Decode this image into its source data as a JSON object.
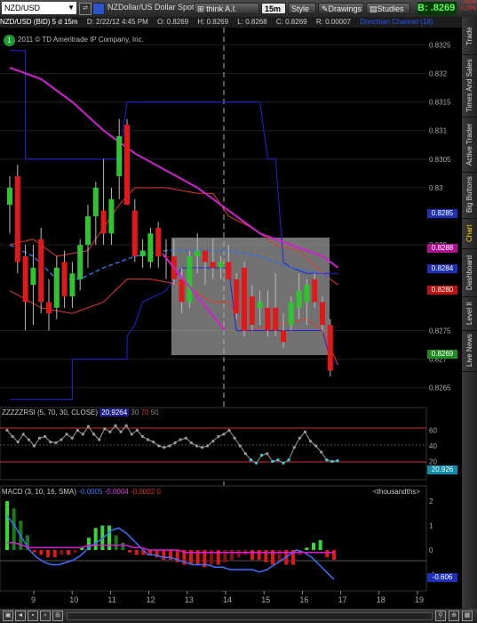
{
  "toolbar": {
    "symbol": "NZD/USD",
    "description": "NZDollar/US Dollar Spot",
    "share_label": "think A.I.",
    "timeframe": "15m",
    "style_label": "Style",
    "drawings_label": "Drawings",
    "studies_label": "Studies",
    "bid_label": "B:",
    "bid_value": ".8269",
    "change_line1": "-.0024",
    "change_line2": "-0.29%"
  },
  "infobar": {
    "symbol": "NZD/USD (BID) 5 d 15m",
    "date": "D: 2/22/12 4:45 PM",
    "open": "O: 0.8269",
    "high": "H: 0.8269",
    "low": "L: 0.8268",
    "close": "C: 0.8269",
    "range": "R: 0.00007",
    "indicator": "Donchian Channel (18)"
  },
  "copyright": "2011 © TD Ameritrade IP Company, Inc.",
  "price_axis": [
    "0.8325",
    "0.832",
    "0.8315",
    "0.831",
    "0.8305",
    "0.83",
    "0.829",
    "0.8275",
    "0.827",
    "0.8265"
  ],
  "price_badges": [
    {
      "label": "0.8285",
      "color": "#1d2fb5"
    },
    {
      "label": "0.8288",
      "color": "#b01090"
    },
    {
      "label": "0.8284",
      "color": "#1d2fb5"
    },
    {
      "label": "0.8280",
      "color": "#c01010"
    },
    {
      "label": "0.8269",
      "color": "#1e8c1e"
    }
  ],
  "rsi": {
    "title": "ZZZZZRSI (5, 70, 30, CLOSE)",
    "value": "20.9264",
    "level1": "30",
    "level2": "70",
    "level3": "50",
    "axis": [
      "60",
      "40",
      "20"
    ],
    "badge": "20.926"
  },
  "macd": {
    "title": "MACD (3, 10, 16, SMA)",
    "v1": "-0.0005",
    "v2": "-0.0004",
    "v3": "-0.0002",
    "v4": "0",
    "units": "<thousandths>",
    "axis": [
      "2",
      "1",
      "0",
      "-1"
    ],
    "badge": "-0.606"
  },
  "time_axis": [
    "9",
    "10",
    "11",
    "12",
    "13",
    "14",
    "15",
    "16",
    "17",
    "18",
    "19"
  ],
  "right_tabs": [
    "Trade",
    "Times And Sales",
    "Active Trader",
    "Big Buttons",
    "Chart",
    "Dashboard",
    "Level II",
    "Live News"
  ],
  "active_tab": "Chart",
  "colors": {
    "up": "#2fc42f",
    "down": "#e01818",
    "donchian": "#2323d8",
    "ma": "#d21fd2",
    "envelope": "#e03a2a",
    "dash": "#2f6fe0",
    "rsi_line": "#999999",
    "rsi_low": "#2ad4e8",
    "box": "#cfcfcf"
  },
  "chart_data": [
    {
      "type": "candlestick",
      "title": "NZD/USD (BID) 5 d 15m",
      "ylim": [
        0.8262,
        0.8328
      ],
      "x_ticks": [
        "9",
        "10",
        "11",
        "12",
        "13",
        "14",
        "15",
        "16",
        "17",
        "18",
        "19"
      ],
      "candles": [
        {
          "o": 0.83,
          "h": 0.8302,
          "l": 0.8292,
          "c": 0.8297,
          "up": true
        },
        {
          "o": 0.8302,
          "h": 0.8304,
          "l": 0.8285,
          "c": 0.8287,
          "up": false
        },
        {
          "o": 0.8288,
          "h": 0.829,
          "l": 0.8275,
          "c": 0.828,
          "up": false
        },
        {
          "o": 0.8283,
          "h": 0.829,
          "l": 0.8276,
          "c": 0.8286,
          "up": true
        },
        {
          "o": 0.8291,
          "h": 0.8293,
          "l": 0.8278,
          "c": 0.828,
          "up": false
        },
        {
          "o": 0.828,
          "h": 0.8284,
          "l": 0.8275,
          "c": 0.8278,
          "up": false
        },
        {
          "o": 0.8279,
          "h": 0.8288,
          "l": 0.8277,
          "c": 0.8286,
          "up": true
        },
        {
          "o": 0.8287,
          "h": 0.8289,
          "l": 0.8279,
          "c": 0.8281,
          "up": false
        },
        {
          "o": 0.8281,
          "h": 0.8287,
          "l": 0.8279,
          "c": 0.8285,
          "up": true
        },
        {
          "o": 0.8284,
          "h": 0.8291,
          "l": 0.8282,
          "c": 0.829,
          "up": true
        },
        {
          "o": 0.829,
          "h": 0.8297,
          "l": 0.8286,
          "c": 0.8295,
          "up": true
        },
        {
          "o": 0.8295,
          "h": 0.8301,
          "l": 0.829,
          "c": 0.83,
          "up": true
        },
        {
          "o": 0.8296,
          "h": 0.8305,
          "l": 0.829,
          "c": 0.8292,
          "up": false
        },
        {
          "o": 0.8292,
          "h": 0.83,
          "l": 0.829,
          "c": 0.8298,
          "up": true
        },
        {
          "o": 0.8302,
          "h": 0.8312,
          "l": 0.8298,
          "c": 0.8309,
          "up": true
        },
        {
          "o": 0.8311,
          "h": 0.8312,
          "l": 0.8297,
          "c": 0.8297,
          "up": false
        },
        {
          "o": 0.8296,
          "h": 0.8298,
          "l": 0.8287,
          "c": 0.8288,
          "up": false
        },
        {
          "o": 0.8288,
          "h": 0.8291,
          "l": 0.8286,
          "c": 0.8289,
          "up": true
        },
        {
          "o": 0.8287,
          "h": 0.8293,
          "l": 0.8286,
          "c": 0.8292,
          "up": true
        },
        {
          "o": 0.8293,
          "h": 0.8294,
          "l": 0.8286,
          "c": 0.8288,
          "up": false
        },
        {
          "o": 0.8288,
          "h": 0.8291,
          "l": 0.8284,
          "c": 0.8288,
          "up": false
        },
        {
          "o": 0.8288,
          "h": 0.8291,
          "l": 0.8283,
          "c": 0.8284,
          "up": false
        },
        {
          "o": 0.8284,
          "h": 0.8286,
          "l": 0.8278,
          "c": 0.828,
          "up": false
        },
        {
          "o": 0.828,
          "h": 0.8289,
          "l": 0.8279,
          "c": 0.8288,
          "up": true
        },
        {
          "o": 0.8288,
          "h": 0.8292,
          "l": 0.8285,
          "c": 0.8289,
          "up": true
        },
        {
          "o": 0.8289,
          "h": 0.8289,
          "l": 0.8283,
          "c": 0.8287,
          "up": false
        },
        {
          "o": 0.8287,
          "h": 0.8291,
          "l": 0.8284,
          "c": 0.8286,
          "up": false
        },
        {
          "o": 0.8286,
          "h": 0.8288,
          "l": 0.8284,
          "c": 0.8287,
          "up": true
        },
        {
          "o": 0.8287,
          "h": 0.829,
          "l": 0.8284,
          "c": 0.8284,
          "up": false
        },
        {
          "o": 0.8284,
          "h": 0.8285,
          "l": 0.8277,
          "c": 0.8278,
          "up": false
        },
        {
          "o": 0.8286,
          "h": 0.8287,
          "l": 0.8274,
          "c": 0.8275,
          "up": false
        },
        {
          "o": 0.8281,
          "h": 0.8283,
          "l": 0.8275,
          "c": 0.8276,
          "up": false
        },
        {
          "o": 0.8279,
          "h": 0.8282,
          "l": 0.8276,
          "c": 0.828,
          "up": true
        },
        {
          "o": 0.8279,
          "h": 0.8282,
          "l": 0.8274,
          "c": 0.8275,
          "up": false
        },
        {
          "o": 0.8279,
          "h": 0.8285,
          "l": 0.8274,
          "c": 0.8275,
          "up": false
        },
        {
          "o": 0.8275,
          "h": 0.8278,
          "l": 0.8272,
          "c": 0.8273,
          "up": false
        },
        {
          "o": 0.8276,
          "h": 0.8281,
          "l": 0.8275,
          "c": 0.828,
          "up": true
        },
        {
          "o": 0.8279,
          "h": 0.8285,
          "l": 0.8277,
          "c": 0.8282,
          "up": true
        },
        {
          "o": 0.8283,
          "h": 0.8284,
          "l": 0.8276,
          "c": 0.828,
          "up": true
        },
        {
          "o": 0.8284,
          "h": 0.8285,
          "l": 0.8279,
          "c": 0.828,
          "up": false
        },
        {
          "o": 0.828,
          "h": 0.8281,
          "l": 0.8275,
          "c": 0.8276,
          "up": false
        },
        {
          "o": 0.8276,
          "h": 0.8277,
          "l": 0.8267,
          "c": 0.8268,
          "up": false
        }
      ]
    },
    {
      "type": "line",
      "title": "ZZZZZRSI (5, 70, 30, CLOSE)",
      "ylim": [
        0,
        80
      ],
      "levels": [
        70,
        30
      ],
      "values": [
        60,
        52,
        45,
        55,
        48,
        40,
        50,
        52,
        45,
        44,
        48,
        55,
        50,
        60,
        55,
        65,
        55,
        48,
        62,
        58,
        66,
        58,
        66,
        55,
        60,
        52,
        48,
        45,
        40,
        38,
        40,
        44,
        48,
        50,
        44,
        40,
        38,
        40,
        46,
        52,
        55,
        60,
        50,
        40,
        30,
        22,
        18,
        28,
        30,
        20,
        22,
        18,
        22,
        38,
        50,
        58,
        46,
        40,
        32,
        22,
        20,
        21
      ]
    },
    {
      "type": "bar",
      "title": "MACD (3, 10, 16, SMA)",
      "ylim": [
        -1.6,
        2.4
      ],
      "histogram": [
        2.0,
        1.7,
        1.2,
        0.6,
        -0.1,
        -0.2,
        -0.3,
        -0.3,
        -0.2,
        -0.2,
        -0.1,
        0.1,
        0.5,
        0.9,
        1.0,
        1.0,
        0.6,
        0.3,
        -0.1,
        -0.2,
        -0.2,
        -0.2,
        -0.3,
        -0.4,
        -0.4,
        -0.5,
        -0.6,
        -0.6,
        -0.6,
        -0.7,
        -0.6,
        -0.6,
        -0.5,
        -0.4,
        -0.3,
        -0.2,
        -0.4,
        -0.4,
        -0.5,
        -0.6,
        -0.5,
        -0.6,
        -0.6,
        -0.2,
        0.1,
        0.3,
        0.4,
        -0.3,
        -0.4
      ],
      "macd_line": [
        1.4,
        1.0,
        0.5,
        0.0,
        -0.3,
        -0.5,
        -0.6,
        -0.6,
        -0.5,
        -0.4,
        -0.2,
        0.1,
        0.3,
        0.5,
        0.8,
        0.9,
        0.7,
        0.4,
        0.1,
        -0.2,
        -0.2,
        -0.3,
        -0.3,
        -0.4,
        -0.5,
        -0.6,
        -0.6,
        -0.6,
        -0.7,
        -0.7,
        -0.8,
        -0.8,
        -0.8,
        -0.8,
        -0.9,
        -0.8,
        -0.6,
        -0.4,
        -0.2,
        0.0,
        -0.1,
        -0.3,
        -0.6,
        -0.9,
        -1.2
      ],
      "signal_line": [
        0.3,
        0.3,
        0.2,
        0.1,
        0.1,
        0.1,
        0.1,
        0.1,
        0.1,
        0.1,
        0.1,
        0.2,
        0.2,
        0.2,
        0.2,
        0.2,
        0.2,
        0.1,
        0.1,
        0.0,
        0.0,
        0.0,
        0.0,
        0.0,
        -0.1,
        -0.1,
        -0.1,
        -0.1,
        -0.1,
        -0.1,
        -0.1,
        -0.1,
        -0.1,
        -0.1,
        -0.1,
        -0.1,
        -0.1,
        -0.1,
        -0.1,
        -0.1,
        -0.1,
        -0.1,
        -0.1,
        -0.1,
        -0.1
      ]
    }
  ]
}
